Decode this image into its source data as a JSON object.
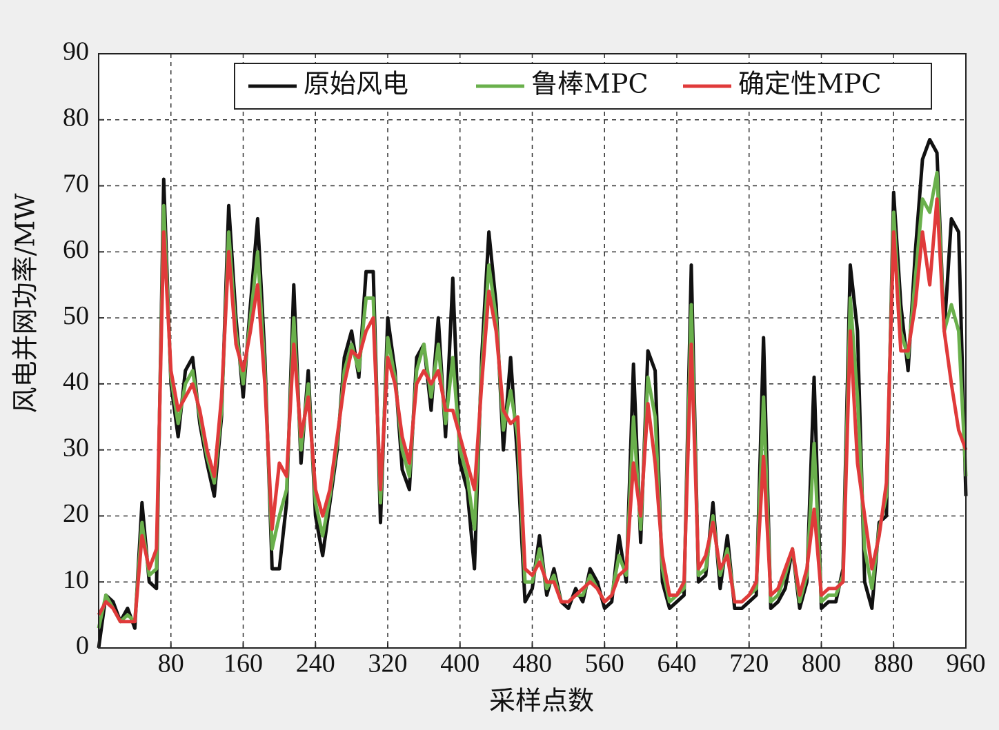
{
  "chart_data": {
    "type": "line",
    "ylabel": "风电并网功率/MW",
    "xlabel": "采样点数",
    "xlim": [
      0,
      960
    ],
    "xticks": [
      80,
      160,
      240,
      320,
      400,
      480,
      560,
      640,
      720,
      800,
      880,
      960
    ],
    "ylim": [
      0,
      90
    ],
    "yticks": [
      0,
      10,
      20,
      30,
      40,
      50,
      60,
      70,
      80,
      90
    ],
    "grid": true,
    "legend": "upper right",
    "x": [
      0,
      8,
      16,
      24,
      32,
      40,
      48,
      56,
      64,
      72,
      80,
      88,
      96,
      104,
      112,
      120,
      128,
      136,
      144,
      152,
      160,
      168,
      176,
      184,
      192,
      200,
      208,
      216,
      224,
      232,
      240,
      248,
      256,
      264,
      272,
      280,
      288,
      296,
      304,
      312,
      320,
      328,
      336,
      344,
      352,
      360,
      368,
      376,
      384,
      392,
      400,
      408,
      416,
      424,
      432,
      440,
      448,
      456,
      464,
      472,
      480,
      488,
      496,
      504,
      512,
      520,
      528,
      536,
      544,
      552,
      560,
      568,
      576,
      584,
      592,
      600,
      608,
      616,
      624,
      632,
      640,
      648,
      656,
      664,
      672,
      680,
      688,
      696,
      704,
      712,
      720,
      728,
      736,
      744,
      752,
      760,
      768,
      776,
      784,
      792,
      800,
      808,
      816,
      824,
      832,
      840,
      848,
      856,
      864,
      872,
      880,
      888,
      896,
      904,
      912,
      920,
      928,
      936,
      944,
      952,
      960
    ],
    "series": [
      {
        "name": "原始风电",
        "color": "#111111",
        "values": [
          0,
          8,
          7,
          4,
          6,
          3,
          22,
          10,
          9,
          71,
          40,
          32,
          42,
          44,
          34,
          28,
          23,
          35,
          67,
          50,
          38,
          52,
          65,
          44,
          12,
          12,
          22,
          55,
          28,
          42,
          20,
          14,
          22,
          30,
          44,
          48,
          41,
          57,
          57,
          19,
          50,
          42,
          27,
          24,
          44,
          46,
          36,
          50,
          32,
          56,
          28,
          24,
          12,
          44,
          63,
          52,
          30,
          44,
          28,
          7,
          9,
          17,
          8,
          12,
          7,
          6,
          9,
          7,
          12,
          10,
          6,
          7,
          17,
          10,
          43,
          16,
          45,
          42,
          10,
          6,
          7,
          8,
          58,
          10,
          11,
          22,
          9,
          17,
          6,
          6,
          7,
          8,
          47,
          6,
          7,
          9,
          15,
          6,
          10,
          41,
          6,
          7,
          7,
          12,
          58,
          48,
          10,
          6,
          19,
          20,
          69,
          52,
          42,
          60,
          74,
          77,
          75,
          48,
          65,
          63,
          23
        ]
      },
      {
        "name": "鲁棒MPC",
        "color": "#6ab04c",
        "values": [
          3,
          8,
          6,
          4,
          5,
          4,
          19,
          11,
          12,
          67,
          41,
          34,
          40,
          42,
          35,
          29,
          25,
          36,
          63,
          48,
          40,
          50,
          60,
          42,
          15,
          20,
          24,
          50,
          30,
          40,
          22,
          17,
          23,
          31,
          42,
          46,
          42,
          53,
          53,
          22,
          47,
          41,
          30,
          26,
          42,
          46,
          38,
          46,
          34,
          44,
          30,
          26,
          18,
          42,
          58,
          50,
          33,
          39,
          32,
          10,
          10,
          15,
          9,
          11,
          7,
          7,
          8,
          8,
          11,
          9,
          7,
          8,
          14,
          11,
          35,
          18,
          41,
          35,
          12,
          7,
          8,
          9,
          52,
          11,
          12,
          20,
          11,
          15,
          7,
          7,
          8,
          9,
          38,
          7,
          8,
          11,
          15,
          7,
          11,
          31,
          7,
          8,
          8,
          11,
          53,
          38,
          15,
          9,
          18,
          23,
          66,
          48,
          44,
          56,
          68,
          66,
          72,
          48,
          52,
          48,
          26
        ]
      },
      {
        "name": "确定性MPC",
        "color": "#e03a3a",
        "values": [
          5,
          7,
          6,
          4,
          4,
          4,
          17,
          12,
          15,
          63,
          42,
          36,
          38,
          40,
          36,
          30,
          26,
          38,
          60,
          46,
          42,
          48,
          55,
          40,
          18,
          28,
          26,
          46,
          32,
          38,
          24,
          20,
          24,
          32,
          40,
          45,
          44,
          48,
          50,
          24,
          44,
          40,
          32,
          28,
          40,
          42,
          40,
          42,
          36,
          36,
          32,
          28,
          24,
          40,
          54,
          48,
          36,
          34,
          35,
          12,
          11,
          13,
          10,
          10,
          7,
          7,
          8,
          9,
          10,
          9,
          7,
          8,
          11,
          12,
          28,
          20,
          37,
          28,
          14,
          8,
          8,
          10,
          46,
          12,
          14,
          19,
          12,
          14,
          7,
          7,
          8,
          10,
          29,
          8,
          9,
          12,
          15,
          8,
          12,
          21,
          8,
          9,
          9,
          10,
          48,
          28,
          20,
          12,
          17,
          25,
          63,
          45,
          45,
          52,
          63,
          55,
          68,
          48,
          40,
          33,
          30
        ]
      }
    ]
  }
}
